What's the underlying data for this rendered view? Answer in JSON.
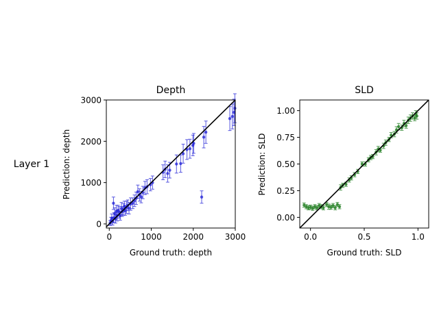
{
  "row_label": "Layer 1",
  "chart_data": [
    {
      "type": "scatter",
      "title": "Depth",
      "xlabel": "Ground truth: depth",
      "ylabel": "Prediction: depth",
      "xlim": [
        -70,
        3000
      ],
      "ylim": [
        -100,
        3000
      ],
      "xticks": [
        0,
        1000,
        2000,
        3000
      ],
      "xtick_labels": [
        "0",
        "1000",
        "2000",
        "3000"
      ],
      "yticks": [
        0,
        1000,
        2000,
        3000
      ],
      "ytick_labels": [
        "0",
        "1000",
        "2000",
        "3000"
      ],
      "color": "#1f1fd6",
      "identity_line": true,
      "grid": false,
      "points": [
        {
          "x": 20,
          "y": 20,
          "err": 60
        },
        {
          "x": 40,
          "y": 80,
          "err": 80
        },
        {
          "x": 60,
          "y": 140,
          "err": 100
        },
        {
          "x": 80,
          "y": 60,
          "err": 90
        },
        {
          "x": 100,
          "y": 500,
          "err": 150
        },
        {
          "x": 110,
          "y": 150,
          "err": 120
        },
        {
          "x": 130,
          "y": 250,
          "err": 140
        },
        {
          "x": 150,
          "y": 120,
          "err": 100
        },
        {
          "x": 170,
          "y": 300,
          "err": 150
        },
        {
          "x": 190,
          "y": 200,
          "err": 130
        },
        {
          "x": 210,
          "y": 330,
          "err": 120
        },
        {
          "x": 240,
          "y": 280,
          "err": 140
        },
        {
          "x": 260,
          "y": 200,
          "err": 110
        },
        {
          "x": 290,
          "y": 370,
          "err": 150
        },
        {
          "x": 310,
          "y": 300,
          "err": 120
        },
        {
          "x": 340,
          "y": 350,
          "err": 140
        },
        {
          "x": 360,
          "y": 420,
          "err": 130
        },
        {
          "x": 380,
          "y": 330,
          "err": 120
        },
        {
          "x": 410,
          "y": 400,
          "err": 150
        },
        {
          "x": 440,
          "y": 450,
          "err": 130
        },
        {
          "x": 470,
          "y": 380,
          "err": 140
        },
        {
          "x": 510,
          "y": 480,
          "err": 150
        },
        {
          "x": 560,
          "y": 500,
          "err": 130
        },
        {
          "x": 600,
          "y": 560,
          "err": 140
        },
        {
          "x": 640,
          "y": 620,
          "err": 150
        },
        {
          "x": 680,
          "y": 780,
          "err": 160
        },
        {
          "x": 720,
          "y": 700,
          "err": 150
        },
        {
          "x": 760,
          "y": 650,
          "err": 140
        },
        {
          "x": 800,
          "y": 760,
          "err": 150
        },
        {
          "x": 850,
          "y": 870,
          "err": 160
        },
        {
          "x": 900,
          "y": 900,
          "err": 170
        },
        {
          "x": 980,
          "y": 950,
          "err": 150
        },
        {
          "x": 1030,
          "y": 1000,
          "err": 160
        },
        {
          "x": 1280,
          "y": 1250,
          "err": 180
        },
        {
          "x": 1330,
          "y": 1320,
          "err": 200
        },
        {
          "x": 1390,
          "y": 1220,
          "err": 210
        },
        {
          "x": 1440,
          "y": 1300,
          "err": 190
        },
        {
          "x": 1600,
          "y": 1450,
          "err": 220
        },
        {
          "x": 1700,
          "y": 1460,
          "err": 210
        },
        {
          "x": 1760,
          "y": 1700,
          "err": 230
        },
        {
          "x": 1850,
          "y": 1800,
          "err": 240
        },
        {
          "x": 1920,
          "y": 1820,
          "err": 230
        },
        {
          "x": 1990,
          "y": 1900,
          "err": 250
        },
        {
          "x": 2010,
          "y": 1950,
          "err": 240
        },
        {
          "x": 2200,
          "y": 650,
          "err": 150
        },
        {
          "x": 2250,
          "y": 2100,
          "err": 260
        },
        {
          "x": 2300,
          "y": 2220,
          "err": 270
        },
        {
          "x": 2870,
          "y": 2550,
          "err": 290
        },
        {
          "x": 2930,
          "y": 2600,
          "err": 300
        },
        {
          "x": 2970,
          "y": 2700,
          "err": 320
        },
        {
          "x": 2990,
          "y": 2800,
          "err": 350
        }
      ]
    },
    {
      "type": "scatter",
      "title": "SLD",
      "xlabel": "Ground truth: SLD",
      "ylabel": "Prediction: SLD",
      "xlim": [
        -0.1,
        1.1
      ],
      "ylim": [
        -0.1,
        1.1
      ],
      "xticks": [
        0,
        0.5,
        1
      ],
      "xtick_labels": [
        "0.0",
        "0.5",
        "1.0"
      ],
      "yticks": [
        0,
        0.25,
        0.5,
        0.75,
        1
      ],
      "ytick_labels": [
        "0.00",
        "0.25",
        "0.50",
        "0.75",
        "1.00"
      ],
      "color": "#1a7a1a",
      "identity_line": true,
      "grid": false,
      "points": [
        {
          "x": -0.06,
          "y": 0.115,
          "err": 0.02
        },
        {
          "x": -0.04,
          "y": 0.1,
          "err": 0.02
        },
        {
          "x": -0.02,
          "y": 0.09,
          "err": 0.02
        },
        {
          "x": 0.0,
          "y": 0.095,
          "err": 0.02
        },
        {
          "x": 0.02,
          "y": 0.085,
          "err": 0.02
        },
        {
          "x": 0.04,
          "y": 0.1,
          "err": 0.02
        },
        {
          "x": 0.06,
          "y": 0.09,
          "err": 0.02
        },
        {
          "x": 0.08,
          "y": 0.11,
          "err": 0.02
        },
        {
          "x": 0.1,
          "y": 0.1,
          "err": 0.02
        },
        {
          "x": 0.12,
          "y": 0.09,
          "err": 0.02
        },
        {
          "x": 0.15,
          "y": 0.12,
          "err": 0.02
        },
        {
          "x": 0.17,
          "y": 0.1,
          "err": 0.025
        },
        {
          "x": 0.19,
          "y": 0.095,
          "err": 0.02
        },
        {
          "x": 0.21,
          "y": 0.11,
          "err": 0.02
        },
        {
          "x": 0.23,
          "y": 0.09,
          "err": 0.02
        },
        {
          "x": 0.25,
          "y": 0.12,
          "err": 0.02
        },
        {
          "x": 0.27,
          "y": 0.1,
          "err": 0.02
        },
        {
          "x": 0.28,
          "y": 0.28,
          "err": 0.025
        },
        {
          "x": 0.3,
          "y": 0.3,
          "err": 0.02
        },
        {
          "x": 0.33,
          "y": 0.31,
          "err": 0.02
        },
        {
          "x": 0.36,
          "y": 0.35,
          "err": 0.02
        },
        {
          "x": 0.38,
          "y": 0.37,
          "err": 0.02
        },
        {
          "x": 0.41,
          "y": 0.4,
          "err": 0.02
        },
        {
          "x": 0.44,
          "y": 0.43,
          "err": 0.02
        },
        {
          "x": 0.48,
          "y": 0.5,
          "err": 0.02
        },
        {
          "x": 0.51,
          "y": 0.5,
          "err": 0.02
        },
        {
          "x": 0.54,
          "y": 0.54,
          "err": 0.02
        },
        {
          "x": 0.56,
          "y": 0.56,
          "err": 0.02
        },
        {
          "x": 0.58,
          "y": 0.57,
          "err": 0.02
        },
        {
          "x": 0.61,
          "y": 0.61,
          "err": 0.025
        },
        {
          "x": 0.63,
          "y": 0.64,
          "err": 0.025
        },
        {
          "x": 0.65,
          "y": 0.63,
          "err": 0.02
        },
        {
          "x": 0.68,
          "y": 0.67,
          "err": 0.025
        },
        {
          "x": 0.7,
          "y": 0.7,
          "err": 0.025
        },
        {
          "x": 0.73,
          "y": 0.73,
          "err": 0.02
        },
        {
          "x": 0.75,
          "y": 0.77,
          "err": 0.025
        },
        {
          "x": 0.78,
          "y": 0.78,
          "err": 0.025
        },
        {
          "x": 0.8,
          "y": 0.82,
          "err": 0.03
        },
        {
          "x": 0.82,
          "y": 0.85,
          "err": 0.03
        },
        {
          "x": 0.85,
          "y": 0.84,
          "err": 0.025
        },
        {
          "x": 0.87,
          "y": 0.88,
          "err": 0.03
        },
        {
          "x": 0.89,
          "y": 0.86,
          "err": 0.025
        },
        {
          "x": 0.91,
          "y": 0.91,
          "err": 0.03
        },
        {
          "x": 0.93,
          "y": 0.93,
          "err": 0.03
        },
        {
          "x": 0.95,
          "y": 0.95,
          "err": 0.03
        },
        {
          "x": 0.97,
          "y": 0.93,
          "err": 0.025
        },
        {
          "x": 0.98,
          "y": 0.97,
          "err": 0.03
        },
        {
          "x": 0.99,
          "y": 0.95,
          "err": 0.03
        }
      ]
    }
  ]
}
